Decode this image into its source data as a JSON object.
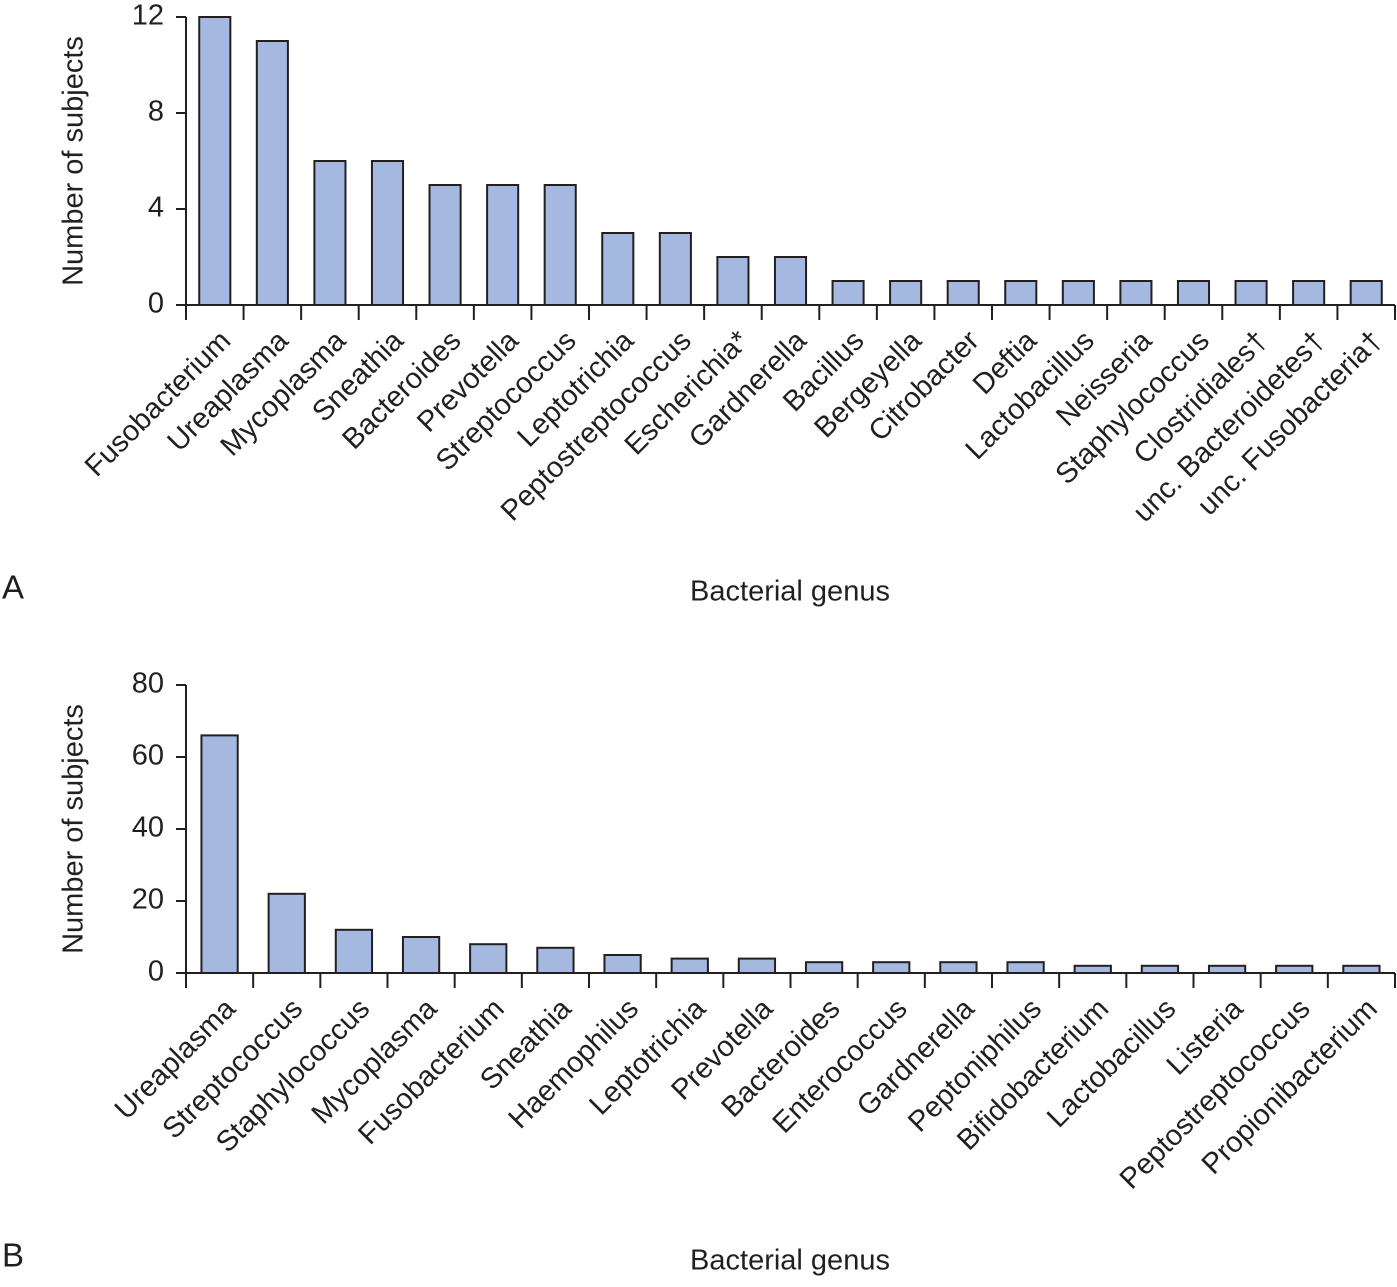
{
  "chart_data": [
    {
      "type": "bar",
      "label": "A",
      "xlabel": "Bacterial genus",
      "ylabel": "Number of subjects",
      "categories": [
        "Fusobacterium",
        "Ureaplasma",
        "Mycoplasma",
        "Sneathia",
        "Bacteroides",
        "Prevotella",
        "Streptococcus",
        "Leptotrichia",
        "Peptostreptococcus",
        "Escherichia*",
        "Gardnerella",
        "Bacillus",
        "Bergeyella",
        "Citrobacter",
        "Deftia",
        "Lactobacillus",
        "Neisseria",
        "Staphylococcus",
        "Clostridiales†",
        "unc. Bacteroidetes†",
        "unc. Fusobacteria†"
      ],
      "values": [
        12,
        11,
        6,
        6,
        5,
        5,
        5,
        3,
        3,
        2,
        2,
        1,
        1,
        1,
        1,
        1,
        1,
        1,
        1,
        1,
        1
      ],
      "color": "#a5b8e0",
      "ylim": [
        0,
        12
      ],
      "yticks": [
        0,
        4,
        8,
        12
      ]
    },
    {
      "type": "bar",
      "label": "B",
      "xlabel": "Bacterial genus",
      "ylabel": "Number of subjects",
      "categories": [
        "Ureaplasma",
        "Streptococcus",
        "Staphylococcus",
        "Mycoplasma",
        "Fusobacterium",
        "Sneathia",
        "Haemophilus",
        "Leptotrichia",
        "Prevotella",
        "Bacteroides",
        "Enterococcus",
        "Gardnerella",
        "Peptoniphilus",
        "Bifidobacterium",
        "Lactobacillus",
        "Listeria",
        "Peptostreptococcus",
        "Propionibacterium"
      ],
      "values": [
        66,
        22,
        12,
        10,
        8,
        7,
        5,
        4,
        4,
        3,
        3,
        3,
        3,
        2,
        2,
        2,
        2,
        2
      ],
      "color": "#a5b8e0",
      "ylim": [
        0,
        80
      ],
      "yticks": [
        0,
        20,
        40,
        60,
        80
      ]
    }
  ]
}
